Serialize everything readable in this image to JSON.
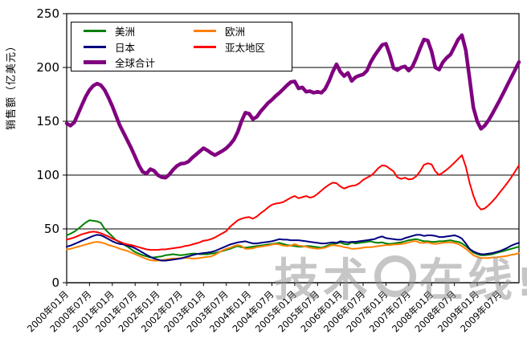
{
  "y_axis": {
    "title": "销售额（亿美元）"
  },
  "legend": {
    "items": [
      {
        "label": "美洲",
        "color": "#008000",
        "thick": false
      },
      {
        "label": "欧洲",
        "color": "#FF8000",
        "thick": false
      },
      {
        "label": "日本",
        "color": "#000080",
        "thick": false
      },
      {
        "label": "亚太地区",
        "color": "#FF0000",
        "thick": false
      },
      {
        "label": "全球合计",
        "color": "#800080",
        "thick": true
      }
    ]
  },
  "watermark": {
    "left": "技术",
    "right": "在线",
    "bang": "!"
  },
  "chart_data": {
    "type": "line",
    "title": "",
    "xlabel": "",
    "ylabel": "销售额（亿美元）",
    "x_start": "2000-01",
    "x_end": "2009-12",
    "x_frequency": "monthly",
    "points_per_series": 120,
    "x_tick_step_months": 6,
    "x_tick_labels": [
      "2000年01月",
      "2000年07月",
      "2001年01月",
      "2001年07月",
      "2002年01月",
      "2002年07月",
      "2003年01月",
      "2003年07月",
      "2004年01月",
      "2004年07月",
      "2005年01月",
      "2005年07月",
      "2006年01月",
      "2006年07月",
      "2007年01月",
      "2007年07月",
      "2008年01月",
      "2008年07月",
      "2009年01月",
      "2009年07月"
    ],
    "ylim": [
      0,
      250
    ],
    "y_ticks": [
      0,
      50,
      100,
      150,
      200,
      250
    ],
    "grid": "horizontal",
    "legend_position": "top-left-inside",
    "series": [
      {
        "name": "美洲",
        "key": "americas",
        "color": "#008000",
        "width": 2,
        "values": [
          44,
          45.5,
          47.5,
          50,
          53,
          56,
          58,
          57.5,
          57,
          55.5,
          50,
          46.5,
          43,
          39.5,
          37.5,
          35.5,
          33.5,
          31,
          28.5,
          27,
          25.5,
          24.5,
          23.5,
          23.5,
          24,
          24.5,
          25.5,
          26,
          26.5,
          26,
          25.5,
          26,
          26.5,
          27,
          27,
          26.5,
          26.5,
          26.5,
          27,
          27.5,
          28.5,
          29.5,
          30.5,
          31.5,
          33,
          34,
          33,
          32.5,
          33,
          33.5,
          34,
          34.5,
          35,
          35.5,
          36,
          36.5,
          37,
          36,
          35,
          34.5,
          34,
          33.5,
          33.5,
          34,
          34,
          33.5,
          33,
          32.5,
          33.5,
          35,
          36,
          36.5,
          37.5,
          36,
          35.5,
          37.5,
          36.5,
          37,
          37.5,
          38,
          38.5,
          37.5,
          37,
          37.5,
          36.5,
          36,
          36.5,
          37,
          37.5,
          38.5,
          39.5,
          40,
          40.5,
          39.5,
          38.5,
          38.5,
          38,
          38,
          38.5,
          38.5,
          39,
          39.5,
          38.5,
          38,
          36.5,
          34,
          31,
          28,
          26.5,
          25.5,
          25.5,
          26,
          26.5,
          27.5,
          28.5,
          29.5,
          30.5,
          31.5,
          32.5,
          33.5
        ]
      },
      {
        "name": "欧洲",
        "key": "europe",
        "color": "#FF8000",
        "width": 2,
        "values": [
          31,
          31.5,
          32.5,
          33.5,
          34.5,
          35.5,
          36.5,
          37.5,
          38,
          37.5,
          36.5,
          35,
          34,
          33,
          31.5,
          30.5,
          29.5,
          28,
          26.5,
          25,
          23.5,
          22,
          21,
          20.5,
          20.5,
          21,
          21.5,
          22,
          22.5,
          22.5,
          23,
          23,
          23,
          22.5,
          22.5,
          23,
          23.5,
          24,
          24.5,
          26,
          28,
          30,
          31.5,
          32.5,
          34,
          35,
          34,
          31.5,
          31.5,
          32,
          33,
          33.5,
          34,
          34.5,
          35.5,
          36,
          35.5,
          34.5,
          34,
          34.5,
          36,
          34.5,
          34,
          33.5,
          32.5,
          32,
          31.5,
          32,
          32.5,
          34,
          35,
          34.5,
          34,
          33,
          32.5,
          31.5,
          31.5,
          32,
          32.5,
          33,
          33,
          33.5,
          34,
          34.5,
          35,
          35,
          35.5,
          35.5,
          36,
          36.5,
          37.5,
          38.5,
          38.5,
          37,
          37,
          37.5,
          36.5,
          36,
          36.5,
          37,
          37.5,
          37.5,
          37,
          36,
          34,
          31.5,
          28.5,
          25.5,
          24,
          23,
          23,
          23,
          23.5,
          23.5,
          24,
          24.5,
          25,
          26,
          26.5,
          27.5
        ]
      },
      {
        "name": "日本",
        "key": "japan",
        "color": "#000080",
        "width": 2,
        "values": [
          33.5,
          34.5,
          36,
          37.5,
          39,
          40.5,
          42,
          43.5,
          44.5,
          44,
          42.5,
          40.5,
          38.5,
          37,
          36,
          35.5,
          34.5,
          33.5,
          32,
          30,
          28,
          26,
          24,
          22.5,
          21.5,
          20.5,
          20.5,
          21,
          21.5,
          22,
          22.5,
          23.5,
          24.5,
          25.5,
          26.5,
          27,
          27.5,
          28,
          28.5,
          29.5,
          31,
          32.5,
          34,
          35.5,
          36.5,
          37.5,
          38,
          38.5,
          37.5,
          36.5,
          36.5,
          37,
          37.5,
          38,
          38.5,
          39.5,
          40.5,
          40,
          40,
          39.5,
          39.5,
          39.5,
          39,
          38.5,
          38,
          37.5,
          37,
          36.5,
          36.5,
          37,
          37.5,
          37,
          38.5,
          38,
          37.5,
          38,
          38,
          38.5,
          39,
          39.5,
          40,
          40.5,
          42,
          43,
          41.5,
          41,
          40.5,
          40,
          40,
          41.5,
          42.5,
          43.5,
          44.5,
          44.5,
          43.5,
          44,
          44,
          43.5,
          42.5,
          42.5,
          43,
          43.5,
          44,
          43,
          41,
          36.5,
          31.5,
          29,
          27.5,
          26.5,
          26.5,
          27,
          27.5,
          28.5,
          29.5,
          31,
          32.5,
          34.5,
          36,
          37
        ]
      },
      {
        "name": "亚太地区",
        "key": "asia-pacific",
        "color": "#FF0000",
        "width": 2,
        "values": [
          40,
          41,
          42,
          43.5,
          45,
          46,
          47,
          47.5,
          47,
          46,
          44.5,
          43,
          41,
          39.5,
          38,
          36.5,
          35.5,
          35,
          34,
          33,
          32,
          31,
          30.5,
          30.5,
          30.5,
          31,
          31,
          31.5,
          32,
          32.5,
          33,
          34,
          34.5,
          35.5,
          36.5,
          37.5,
          39,
          39.5,
          40.5,
          42,
          44,
          46,
          48,
          52,
          55,
          58,
          59.5,
          60.5,
          61,
          59.5,
          61.5,
          64.5,
          67,
          70,
          72.5,
          73.5,
          74,
          75,
          77,
          79,
          80.5,
          78.5,
          79.5,
          80.5,
          79,
          80,
          82.5,
          85.5,
          88.5,
          91,
          93,
          92.5,
          89.5,
          87.5,
          89,
          90,
          90.5,
          92.5,
          95.5,
          97.5,
          99.5,
          102.5,
          106.5,
          109,
          108.5,
          106,
          103.5,
          98,
          96.5,
          97.5,
          96,
          96.5,
          99,
          103.5,
          109.5,
          111,
          110,
          103.5,
          100,
          102.5,
          105,
          108,
          111.5,
          115,
          118.5,
          108,
          93,
          81,
          72,
          68,
          69,
          72,
          75.5,
          79.5,
          84,
          88.5,
          93,
          98,
          103.5,
          109
        ]
      },
      {
        "name": "全球合计",
        "key": "global-total",
        "color": "#800080",
        "width": 4.5,
        "values": [
          148,
          146,
          149,
          157,
          165,
          173,
          179,
          183,
          185,
          183.5,
          179,
          172,
          164,
          155,
          146,
          139,
          132,
          125,
          117,
          109,
          103,
          101.5,
          105.5,
          104,
          100,
          98,
          97.5,
          100.5,
          105,
          108.5,
          110.5,
          111,
          112.5,
          116,
          119,
          122,
          125,
          123,
          120.5,
          118.5,
          120.5,
          122.5,
          125,
          128.5,
          133,
          140,
          150,
          158,
          157,
          152,
          154,
          159,
          163,
          167,
          170,
          173.5,
          176.5,
          180,
          183.5,
          186.5,
          187,
          180.5,
          181.5,
          177.5,
          178,
          176.5,
          177.5,
          176.5,
          180,
          187,
          196,
          203,
          196,
          192,
          195,
          187.5,
          191,
          192.5,
          193.5,
          197,
          205,
          211,
          216,
          221,
          222,
          212,
          199.5,
          197.5,
          200,
          201,
          197,
          201,
          209,
          218,
          226,
          225,
          215,
          200,
          198,
          205,
          209,
          212,
          219,
          226,
          230,
          216,
          190,
          163,
          150,
          143,
          146,
          151,
          157,
          163.5,
          170,
          177,
          184,
          191,
          198,
          205
        ]
      }
    ]
  }
}
